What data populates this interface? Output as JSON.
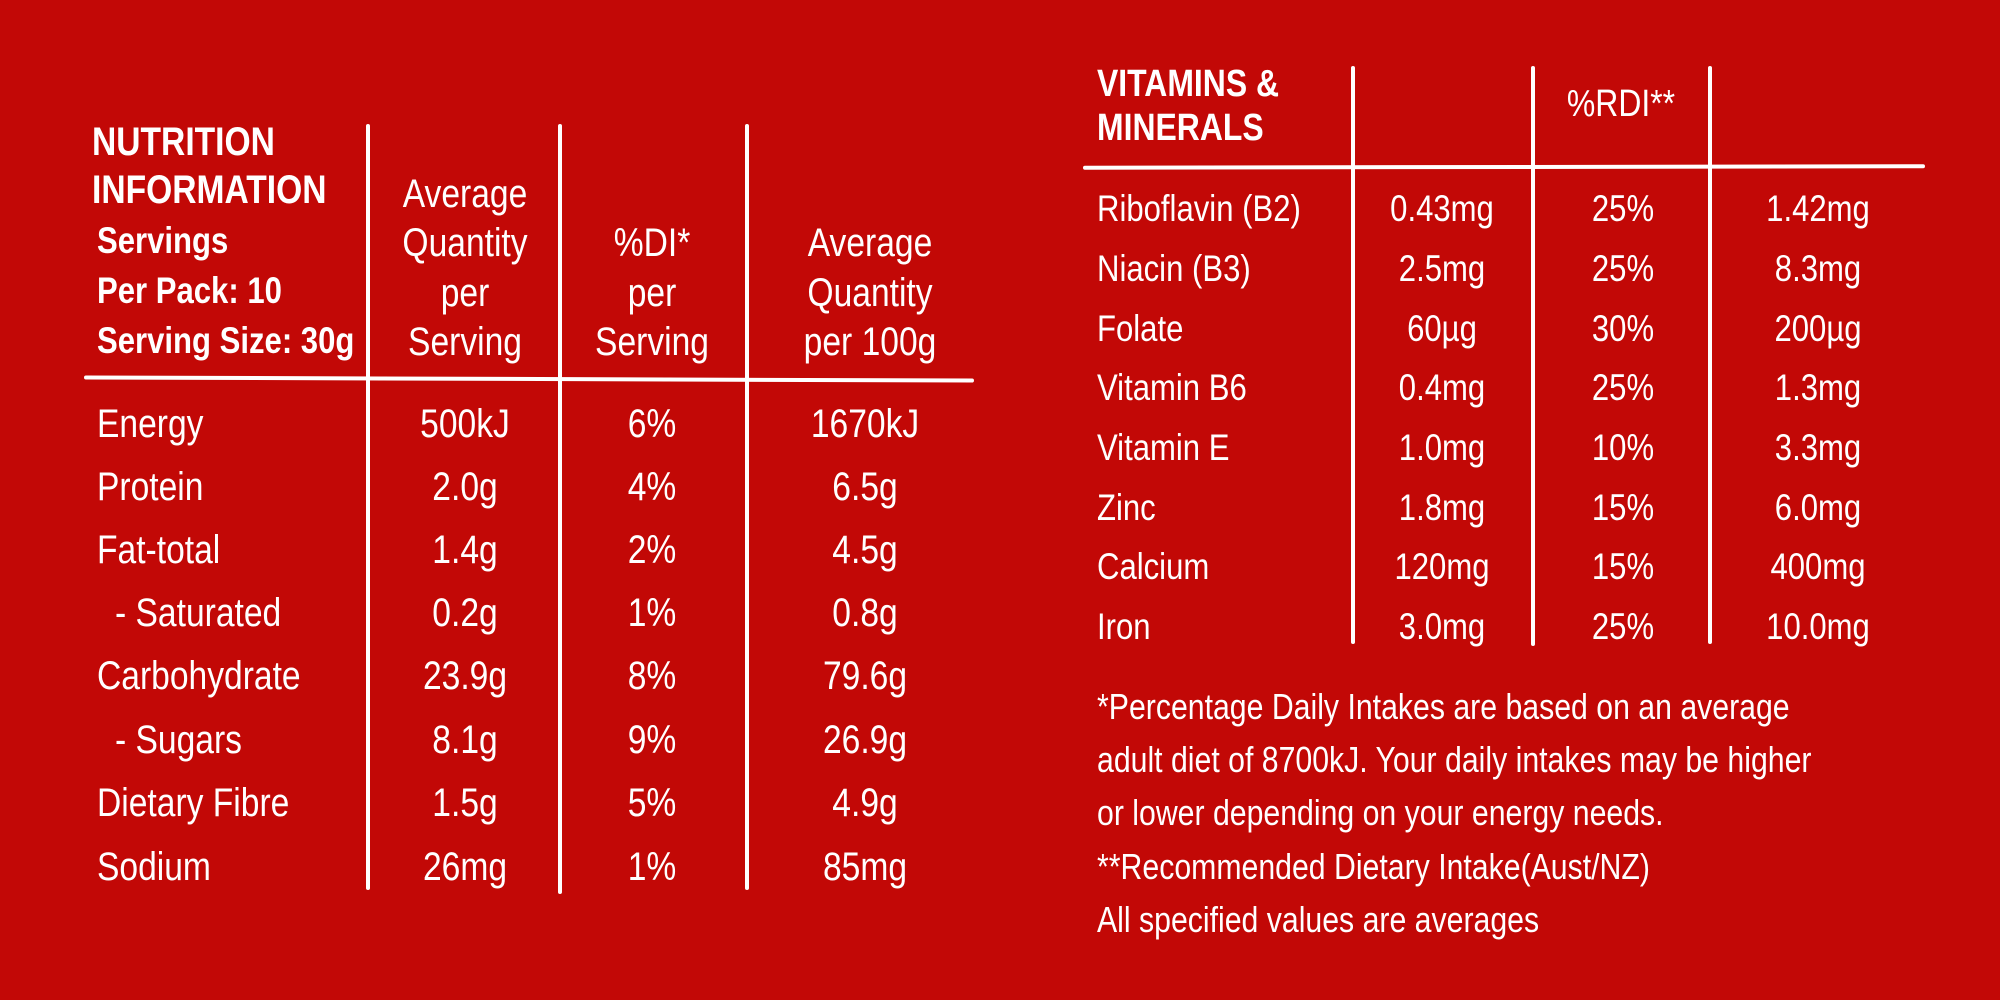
{
  "nutrition": {
    "title_line1": "NUTRITION",
    "title_line2": "INFORMATION",
    "servings_line1": "Servings",
    "servings_line2": "Per Pack: 10",
    "servings_line3": "Serving Size: 30g",
    "headers": {
      "per_serving": [
        "Average",
        "Quantity",
        "per",
        "Serving"
      ],
      "di": [
        "%DI*",
        "per",
        "Serving"
      ],
      "per_100g": [
        "Average",
        "Quantity",
        "per 100g"
      ]
    },
    "rows": [
      {
        "name": "Energy",
        "per_serving": "500kJ",
        "di": "6%",
        "per_100g": "1670kJ"
      },
      {
        "name": "Protein",
        "per_serving": "2.0g",
        "di": "4%",
        "per_100g": "6.5g"
      },
      {
        "name": "Fat-total",
        "per_serving": "1.4g",
        "di": "2%",
        "per_100g": "4.5g"
      },
      {
        "name": "- Saturated",
        "per_serving": "0.2g",
        "di": "1%",
        "per_100g": "0.8g"
      },
      {
        "name": "Carbohydrate",
        "per_serving": "23.9g",
        "di": "8%",
        "per_100g": "79.6g"
      },
      {
        "name": "- Sugars",
        "per_serving": "8.1g",
        "di": "9%",
        "per_100g": "26.9g"
      },
      {
        "name": "Dietary Fibre",
        "per_serving": "1.5g",
        "di": "5%",
        "per_100g": "4.9g"
      },
      {
        "name": "Sodium",
        "per_serving": "26mg",
        "di": "1%",
        "per_100g": "85mg"
      }
    ]
  },
  "vitamins": {
    "title_line1": "VITAMINS &",
    "title_line2": "MINERALS",
    "rdi_header": "%RDI**",
    "rows": [
      {
        "name": "Riboflavin (B2)",
        "per_serving": "0.43mg",
        "rdi": "25%",
        "per_100g": "1.42mg"
      },
      {
        "name": "Niacin (B3)",
        "per_serving": "2.5mg",
        "rdi": "25%",
        "per_100g": "8.3mg"
      },
      {
        "name": "Folate",
        "per_serving": "60µg",
        "rdi": "30%",
        "per_100g": "200µg"
      },
      {
        "name": "Vitamin B6",
        "per_serving": "0.4mg",
        "rdi": "25%",
        "per_100g": "1.3mg"
      },
      {
        "name": "Vitamin E",
        "per_serving": "1.0mg",
        "rdi": "10%",
        "per_100g": "3.3mg"
      },
      {
        "name": "Zinc",
        "per_serving": "1.8mg",
        "rdi": "15%",
        "per_100g": "6.0mg"
      },
      {
        "name": "Calcium",
        "per_serving": "120mg",
        "rdi": "15%",
        "per_100g": "400mg"
      },
      {
        "name": "Iron",
        "per_serving": "3.0mg",
        "rdi": "25%",
        "per_100g": "10.0mg"
      }
    ]
  },
  "footnotes": [
    "*Percentage Daily Intakes are based on an average",
    "adult diet of 8700kJ. Your daily intakes may be higher",
    "or lower depending on your energy needs.",
    "**Recommended Dietary Intake(Aust/NZ)",
    "All specified values are averages"
  ],
  "colors": {
    "background": "#c20806",
    "text": "#ffffff"
  }
}
